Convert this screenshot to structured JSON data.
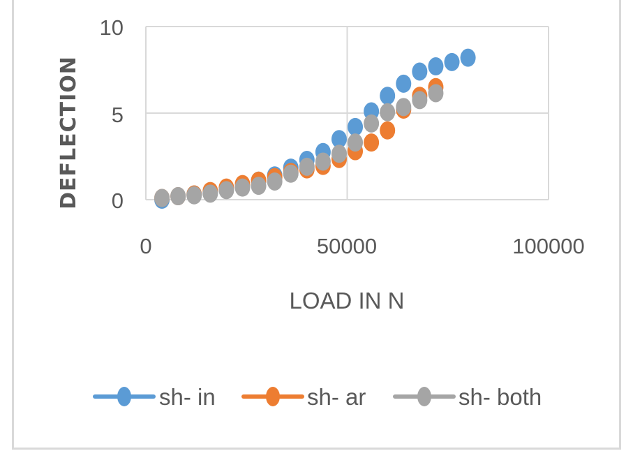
{
  "chart_data": {
    "type": "scatter",
    "title": "",
    "xlabel": "LOAD IN N",
    "ylabel": "DEFLECTION",
    "xlim": [
      0,
      100000
    ],
    "ylim": [
      0,
      10
    ],
    "x_ticks": [
      "0",
      "50000",
      "100000"
    ],
    "y_ticks": [
      "0",
      "5",
      "10"
    ],
    "grid": true,
    "legend_position": "bottom",
    "series": [
      {
        "name": "sh- in",
        "color": "#5b9bd5",
        "x": [
          4000,
          8000,
          12000,
          16000,
          20000,
          24000,
          28000,
          32000,
          36000,
          40000,
          44000,
          48000,
          52000,
          56000,
          60000,
          64000,
          68000,
          72000,
          76000,
          80000
        ],
        "values": [
          0.0,
          0.2,
          0.3,
          0.4,
          0.6,
          0.8,
          1.1,
          1.4,
          1.85,
          2.3,
          2.75,
          3.5,
          4.2,
          5.1,
          6.0,
          6.7,
          7.4,
          7.7,
          7.95,
          8.2
        ]
      },
      {
        "name": "sh- ar",
        "color": "#ed7d31",
        "x": [
          4000,
          8000,
          12000,
          16000,
          20000,
          24000,
          28000,
          32000,
          36000,
          40000,
          44000,
          48000,
          52000,
          56000,
          60000,
          64000,
          68000,
          72000
        ],
        "values": [
          0.1,
          0.2,
          0.3,
          0.5,
          0.7,
          0.9,
          1.1,
          1.3,
          1.6,
          1.75,
          1.95,
          2.35,
          2.8,
          3.3,
          4.0,
          5.2,
          6.0,
          6.5
        ]
      },
      {
        "name": "sh- both",
        "color": "#a5a5a5",
        "x": [
          4000,
          8000,
          12000,
          16000,
          20000,
          24000,
          28000,
          32000,
          36000,
          40000,
          44000,
          48000,
          52000,
          56000,
          60000,
          64000,
          68000,
          72000
        ],
        "values": [
          0.1,
          0.2,
          0.25,
          0.35,
          0.55,
          0.7,
          0.8,
          1.05,
          1.5,
          1.9,
          2.2,
          2.65,
          3.3,
          4.4,
          5.05,
          5.35,
          5.75,
          6.15
        ]
      }
    ]
  },
  "axes": {
    "x_title": "LOAD IN N",
    "y_title": "DEFLECTION",
    "x_tick_labels": [
      "0",
      "50000",
      "100000"
    ],
    "y_tick_labels": [
      "0",
      "5",
      "10"
    ]
  },
  "legend": {
    "items": [
      {
        "label": "sh- in",
        "color": "#5b9bd5"
      },
      {
        "label": "sh- ar",
        "color": "#ed7d31"
      },
      {
        "label": "sh- both",
        "color": "#a5a5a5"
      }
    ]
  },
  "style": {
    "gridline_color": "#d9d9d9",
    "text_color": "#595959"
  }
}
